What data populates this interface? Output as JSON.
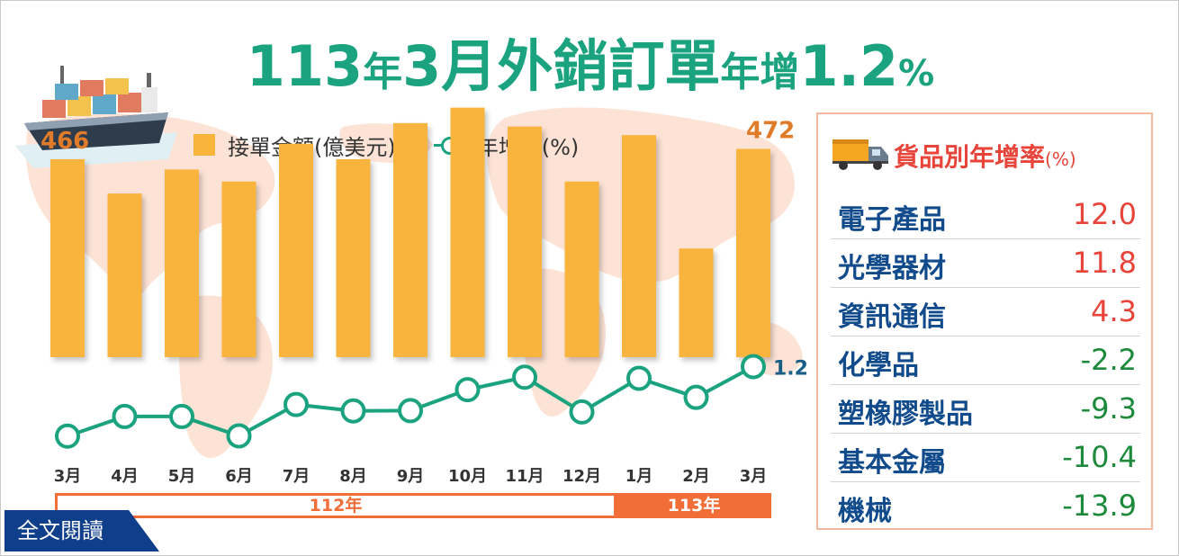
{
  "title": {
    "part1": "113",
    "part2": "年",
    "part3": "3月",
    "part4": "外銷訂單",
    "part5": "年增",
    "part6": "1.2",
    "part7": "%"
  },
  "legend": {
    "bar_label": "接單金額(億美元)",
    "line_label": "年增率(%)"
  },
  "chart_data": {
    "type": "bar",
    "categories": [
      "3月",
      "4月",
      "5月",
      "6月",
      "7月",
      "8月",
      "9月",
      "10月",
      "11月",
      "12月",
      "1月",
      "2月",
      "3月"
    ],
    "series": [
      {
        "name": "接單金額(億美元)",
        "type": "bar",
        "values": [
          466,
          446,
          460,
          453,
          475,
          466,
          487,
          496,
          485,
          453,
          480,
          414,
          472
        ]
      },
      {
        "name": "年增率(%)",
        "type": "line",
        "values": [
          -25.0,
          -17.6,
          -17.6,
          -24.9,
          -13.1,
          -15.5,
          -15.4,
          -7.5,
          -2.8,
          -15.9,
          -3.2,
          -10.4,
          1.2
        ]
      }
    ],
    "bar_labels": {
      "first": "466",
      "last": "472"
    },
    "line_label_last": "1.2",
    "year_groups": [
      {
        "label": "112年",
        "count": 10
      },
      {
        "label": "113年",
        "count": 3
      }
    ],
    "colors": {
      "bar": "#f9b43c",
      "line": "#1aa37e"
    }
  },
  "readmore": "全文閱讀",
  "panel": {
    "title": "貨品別年增率",
    "unit": "(%)",
    "items": [
      {
        "name": "電子產品",
        "value": "12.0"
      },
      {
        "name": "光學器材",
        "value": "11.8"
      },
      {
        "name": "資訊通信",
        "value": "4.3"
      },
      {
        "name": "化學品",
        "value": "-2.2"
      },
      {
        "name": "塑橡膠製品",
        "value": "-9.3"
      },
      {
        "name": "基本金屬",
        "value": "-10.4"
      },
      {
        "name": "機械",
        "value": "-13.9"
      }
    ]
  },
  "colors": {
    "accent_green": "#1aa37e",
    "accent_red": "#e8443a",
    "accent_orange": "#f26e38",
    "navy": "#0f3e8a",
    "map": "#fde3d6"
  }
}
